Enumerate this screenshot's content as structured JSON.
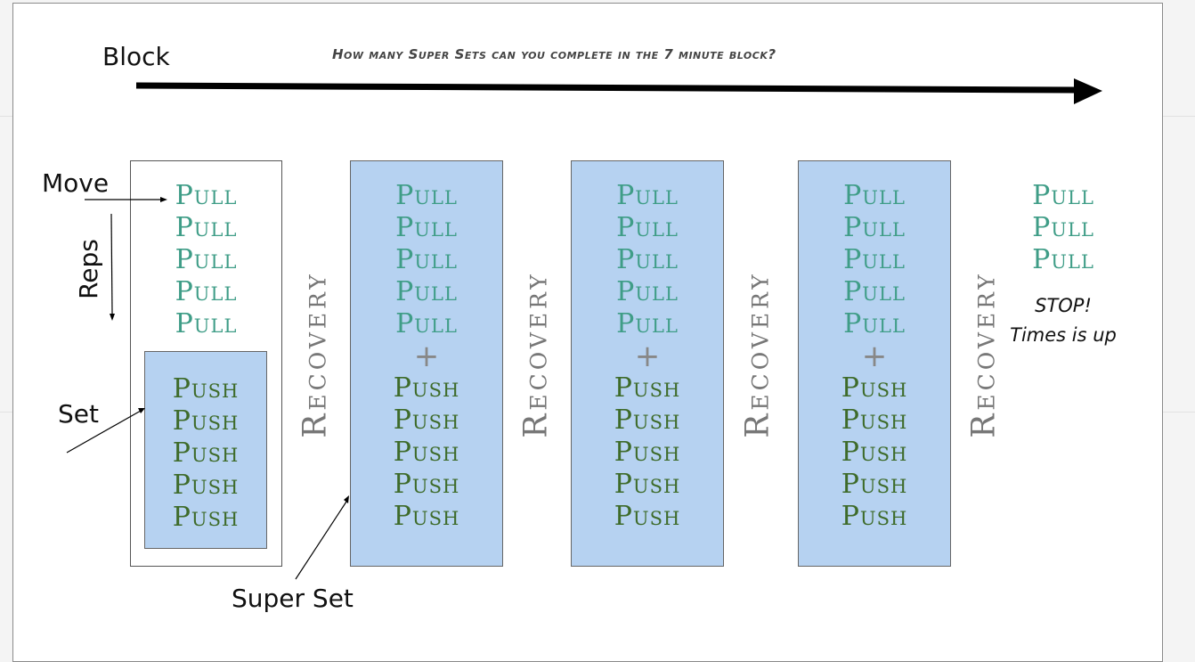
{
  "labels": {
    "block": "Block",
    "question": "How many Super Sets can you complete in the 7 minute block?",
    "move": "Move",
    "reps": "Reps",
    "set": "Set",
    "super_set": "Super Set"
  },
  "moves": {
    "pull": "Pull",
    "push": "Push",
    "plus": "+",
    "recovery": "Recovery"
  },
  "stop": {
    "line1": "STOP!",
    "line2": "Times is up"
  },
  "colors": {
    "set_fill": "#b6d2f1",
    "pull_text": "#3f9d87",
    "push_text": "#3e6b2a",
    "recovery_text": "#777777"
  }
}
